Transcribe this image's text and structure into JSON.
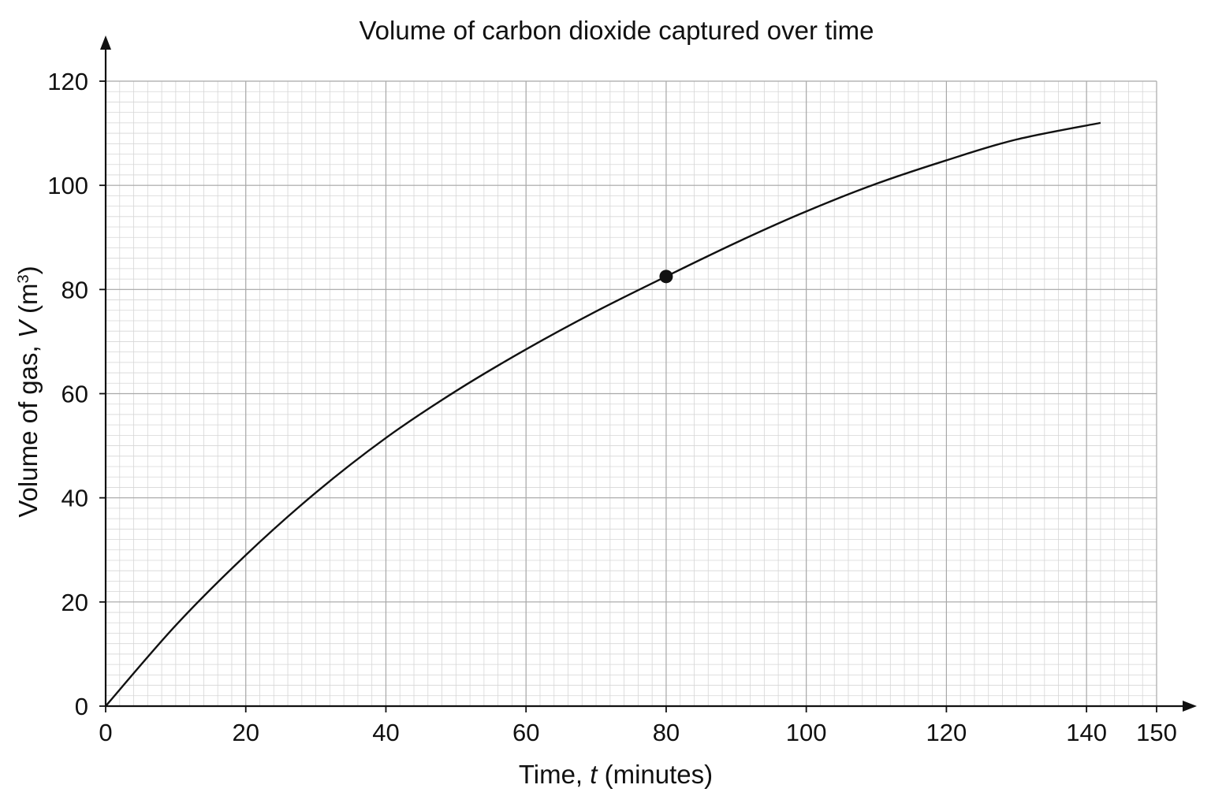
{
  "chart_data": {
    "type": "line",
    "title": "Volume of carbon dioxide captured over time",
    "xlabel": {
      "prefix": "Time, ",
      "var": "t",
      "suffix": " (minutes)"
    },
    "ylabel": {
      "prefix": "Volume of gas, ",
      "var": "V",
      "suffix": " (m",
      "sup": "3",
      "close": ")"
    },
    "xlim": [
      0,
      150
    ],
    "ylim": [
      0,
      120
    ],
    "x_ticks": [
      0,
      20,
      40,
      60,
      80,
      100,
      120,
      140,
      150
    ],
    "y_ticks": [
      0,
      20,
      40,
      60,
      80,
      100,
      120
    ],
    "grid": true,
    "grid_major_x": 20,
    "grid_major_y": 20,
    "grid_minor_x": 2,
    "grid_minor_y": 2,
    "series": [
      {
        "x": [
          0,
          10,
          20,
          30,
          40,
          50,
          60,
          70,
          80,
          90,
          100,
          110,
          120,
          130,
          142
        ],
        "y": [
          0,
          15.5,
          29,
          41,
          51.5,
          60.5,
          68.5,
          75.8,
          82.5,
          89,
          95,
          100.3,
          104.8,
          108.8,
          112
        ]
      }
    ],
    "highlighted_point": {
      "x": 80,
      "y": 82.5
    },
    "line_color": "#111111",
    "grid_major_color": "#a8a8a8",
    "grid_minor_color": "#d6d6d6"
  }
}
